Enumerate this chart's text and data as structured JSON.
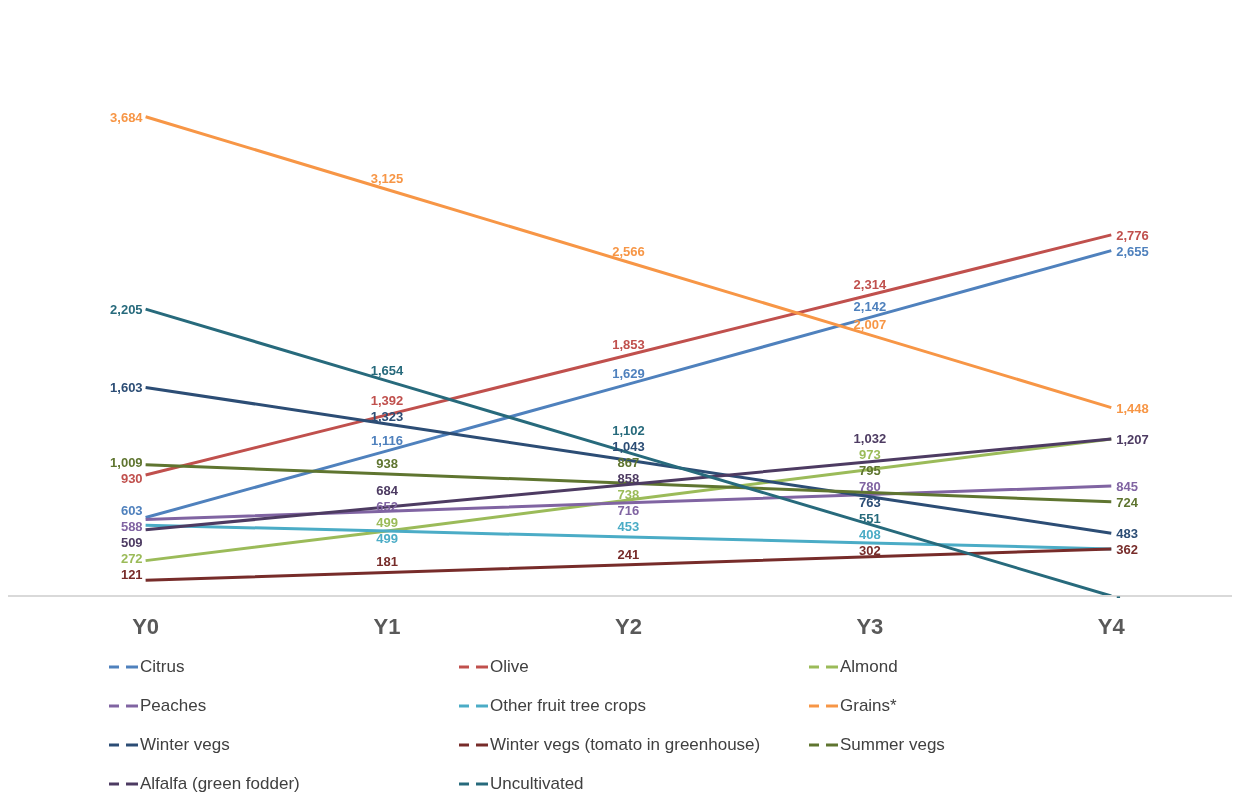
{
  "chart_data": {
    "type": "line",
    "categories": [
      "Y0",
      "Y1",
      "Y2",
      "Y3",
      "Y4"
    ],
    "legend": "bottom",
    "marker": "none",
    "line_style": "solid",
    "series": [
      {
        "name": "Citrus",
        "color": "#4f81bd",
        "values": [
          603,
          1116,
          1629,
          2142,
          2655
        ],
        "value_labels": [
          "603",
          "1,116",
          "1,629",
          "2,142",
          "2,655"
        ]
      },
      {
        "name": "Olive",
        "color": "#c0504d",
        "values": [
          930,
          1392,
          1853,
          2314,
          2776
        ],
        "value_labels": [
          "930",
          "1,392",
          "1,853",
          "2,314",
          "2,776"
        ]
      },
      {
        "name": "Almond",
        "color": "#9bbb59",
        "values": [
          272,
          499,
          738,
          973,
          1207
        ],
        "value_labels": [
          "272",
          "499",
          "738",
          "973",
          null
        ]
      },
      {
        "name": "Peaches",
        "color": "#8064a2",
        "values": [
          588,
          652,
          716,
          780,
          845
        ],
        "value_labels": [
          "588",
          "652",
          "716",
          "780",
          "845"
        ]
      },
      {
        "name": "Other fruit tree crops",
        "color": "#4bacc6",
        "values": [
          544,
          499,
          453,
          408,
          362
        ],
        "value_labels": [
          null,
          "499",
          "453",
          "408",
          null
        ]
      },
      {
        "name": "Grains*",
        "color": "#f79646",
        "values": [
          3684,
          3125,
          2566,
          2007,
          1448
        ],
        "value_labels": [
          "3,684",
          "3,125",
          "2,566",
          "2,007",
          "1,448"
        ]
      },
      {
        "name": "Winter vegs",
        "color": "#2c4d75",
        "values": [
          1603,
          1323,
          1043,
          763,
          483
        ],
        "value_labels": [
          "1,603",
          "1,323",
          "1,043",
          "763",
          "483"
        ]
      },
      {
        "name": "Winter vegs (tomato in greenhouse)",
        "color": "#772c2a",
        "values": [
          121,
          181,
          241,
          302,
          362
        ],
        "value_labels": [
          "121",
          "181",
          "241",
          "302",
          "362"
        ]
      },
      {
        "name": "Summer vegs",
        "color": "#5f7530",
        "values": [
          1009,
          938,
          867,
          795,
          724
        ],
        "value_labels": [
          "1,009",
          "938",
          "867",
          "795",
          "724"
        ]
      },
      {
        "name": "Alfalfa (green fodder)",
        "color": "#4d3b62",
        "values": [
          509,
          684,
          858,
          1032,
          1207
        ],
        "value_labels": [
          "509",
          "684",
          "858",
          "1,032",
          "1,207"
        ]
      },
      {
        "name": "Uncultivated",
        "color": "#276a7c",
        "values": [
          2205,
          1654,
          1102,
          551,
          0
        ],
        "value_labels": [
          "2,205",
          "1,654",
          "1,102",
          "551",
          "-"
        ]
      }
    ]
  }
}
